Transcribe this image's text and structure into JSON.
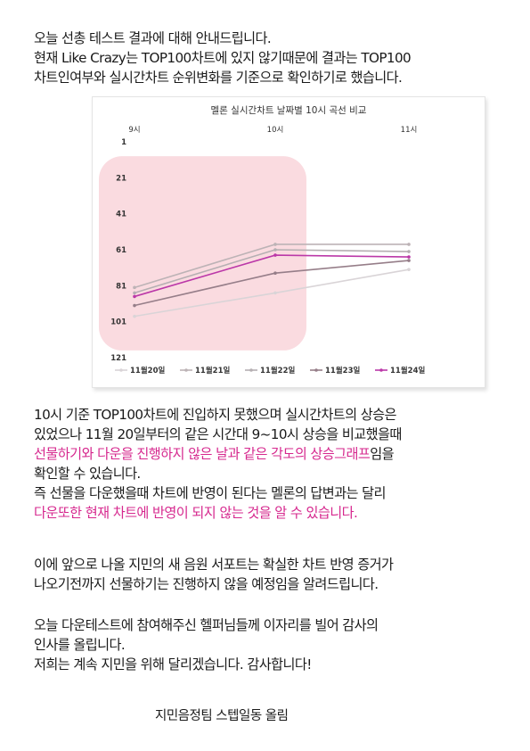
{
  "intro": {
    "lines": [
      "오늘 선총 테스트 결과에 대해 안내드립니다.",
      "현재 Like Crazy는 TOP100차트에 있지 않기때문에 결과는 TOP100",
      "차트인여부와 실시간차트 순위변화를 기준으로 확인하기로 했습니다."
    ]
  },
  "chart_data": {
    "type": "line",
    "title": "멜론 실시간차트 날짜별 10시 곡선 비교",
    "x": [
      "9시",
      "10시",
      "11시"
    ],
    "y_ticks": [
      1,
      21,
      41,
      61,
      81,
      101,
      121
    ],
    "ylim": [
      121,
      1
    ],
    "y_inverted": true,
    "grid": false,
    "legend_position": "bottom",
    "highlight_region": {
      "x_from": "9시",
      "x_to": "10시",
      "color": "#f9d5db"
    },
    "series": [
      {
        "name": "11월20일",
        "values": [
          98,
          85,
          72
        ],
        "color": "#d9d4d7"
      },
      {
        "name": "11월21일",
        "values": [
          82,
          58,
          58
        ],
        "color": "#bdb3b6"
      },
      {
        "name": "11월22일",
        "values": [
          85,
          61,
          62
        ],
        "color": "#b5afb2"
      },
      {
        "name": "11월23일",
        "values": [
          92,
          74,
          67
        ],
        "color": "#967e89"
      },
      {
        "name": "11월24일",
        "values": [
          87,
          64,
          65
        ],
        "color": "#bb38a8"
      }
    ]
  },
  "body1": {
    "l1": "10시 기준 TOP100차트에 진입하지 못했으며 실시간차트의 상승은",
    "l2": "있었으나 11월 20일부터의 같은 시간대 9~10시 상승을 비교했을때",
    "l3_hl": "선물하기와 다운을 진행하지 않은 날과 같은 각도의 상승그래프",
    "l3_rest": "임을",
    "l4": "확인할 수 있습니다.",
    "l5": "즉 선물을 다운했을때 차트에 반영이 된다는 멜론의 답변과는 달리",
    "l6_hl": "다운또한 현재 차트에 반영이 되지 않는 것을 알 수 있습니다."
  },
  "body2": {
    "lines": [
      "이에 앞으로 나올 지민의 새 음원 서포트는 확실한 차트 반영 증거가",
      "나오기전까지 선물하기는 진행하지 않을 예정임을 알려드립니다."
    ]
  },
  "body3": {
    "lines": [
      "오늘 다운테스트에 참여해주신 헬퍼님들께 이자리를 빌어 감사의",
      "인사를 올립니다.",
      "저희는 계속 지민을 위해 달리겠습니다. 감사합니다!"
    ]
  },
  "signature": "지민음정팀 스텝일동 올림"
}
